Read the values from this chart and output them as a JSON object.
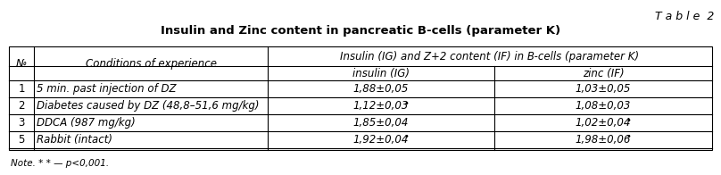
{
  "table_label": "T a b l e  2",
  "title": "Insulin and Zinc content in pancreatic B-cells (parameter K)",
  "big_header": "Insulin (IG) and Z+2 content (IF) in B-cells (parameter K)",
  "sub_header_ig": "insulin (IG)",
  "sub_header_zn": "zinc (IF)",
  "rows": [
    [
      "1",
      "5 min. past injection of DZ",
      "1,88±0,05",
      "1,03±0,05",
      false,
      false
    ],
    [
      "2",
      "Diabetes caused by DZ (48,8–51,6 mg/kg)",
      "1,12±0,03",
      "1,08±0,03",
      true,
      false
    ],
    [
      "3",
      "DDCA (987 mg/kg)",
      "1,85±0,04",
      "1,02±0,04",
      false,
      true
    ],
    [
      "5",
      "Rabbit (intact)",
      "1,92±0,04",
      "1,98±0,06",
      true,
      true
    ]
  ],
  "note": "Note. * * — p<0,001.",
  "bg_color": "#ffffff",
  "border_color": "#000000",
  "title_fontsize": 9.5,
  "header_fontsize": 8.5,
  "cell_fontsize": 8.5,
  "note_fontsize": 7.5,
  "label_fontsize": 9
}
